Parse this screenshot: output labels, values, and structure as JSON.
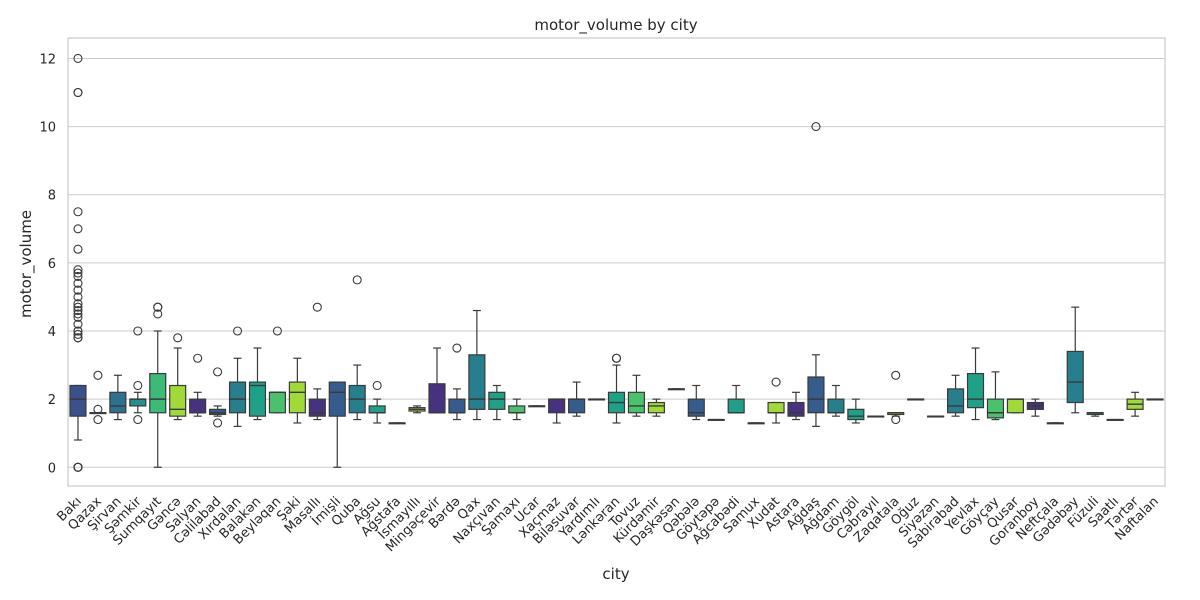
{
  "chart_data": {
    "type": "box",
    "title": "motor_volume by city",
    "xlabel": "city",
    "ylabel": "motor_volume",
    "ylim": [
      -0.55,
      12.6
    ],
    "yticks": [
      0,
      2,
      4,
      6,
      8,
      10,
      12
    ],
    "grid": "horizontal",
    "palette": "viridis",
    "categories": [
      "Bakı",
      "Qazax",
      "Şirvan",
      "Şəmkir",
      "Sumqayıt",
      "Gəncə",
      "Salyan",
      "Cəlilabad",
      "Xırdalan",
      "Balakən",
      "Beyləqan",
      "Şəki",
      "Masallı",
      "İmişli",
      "Quba",
      "Ağsu",
      "Ağstafa",
      "İsmayıllı",
      "Mingəçevir",
      "Bərdə",
      "Qax",
      "Naxçıvan",
      "Şamaxı",
      "Ucar",
      "Xaçmaz",
      "Biləsuvar",
      "Yardımlı",
      "Lənkəran",
      "Tovuz",
      "Kürdəmir",
      "Daşkəsən",
      "Qəbələ",
      "Göytəpə",
      "Ağcabədi",
      "Samux",
      "Xudat",
      "Astara",
      "Ağdaş",
      "Ağdam",
      "Göygöl",
      "Cəbrayıl",
      "Zaqatala",
      "Oğuz",
      "Siyəzən",
      "Sabirabad",
      "Yevlax",
      "Göyçay",
      "Qusar",
      "Goranboy",
      "Neftçala",
      "Gədəbəy",
      "Füzuli",
      "Saatlı",
      "Tərtər",
      "Naftalan"
    ],
    "boxes": [
      {
        "q1": 1.5,
        "median": 2.0,
        "q3": 2.4,
        "whisker_low": 0.8,
        "whisker_high": 2.4,
        "color": "#3b518b",
        "outliers": [
          0,
          0,
          0,
          0,
          3.8,
          3.8,
          3.9,
          4.0,
          4.0,
          4.2,
          4.4,
          4.5,
          4.6,
          4.7,
          4.8,
          5.0,
          5.2,
          5.4,
          5.6,
          5.7,
          5.8,
          6.4,
          7.0,
          7.5,
          11.0,
          11.0,
          12.0
        ]
      },
      {
        "q1": 1.6,
        "median": 1.6,
        "q3": 1.6,
        "whisker_low": 1.6,
        "whisker_high": 1.6,
        "color": "#2c728e",
        "outliers": [
          1.4,
          1.7,
          2.7
        ]
      },
      {
        "q1": 1.6,
        "median": 1.8,
        "q3": 2.2,
        "whisker_low": 1.4,
        "whisker_high": 2.7,
        "color": "#2c728e",
        "outliers": []
      },
      {
        "q1": 1.8,
        "median": 2.0,
        "q3": 2.0,
        "whisker_low": 1.6,
        "whisker_high": 2.2,
        "color": "#21918c",
        "outliers": [
          1.4,
          2.4,
          4.0
        ]
      },
      {
        "q1": 1.6,
        "median": 2.0,
        "q3": 2.75,
        "whisker_low": 0.0,
        "whisker_high": 4.0,
        "color": "#3bbb75",
        "outliers": [
          4.5,
          4.7,
          4.7
        ]
      },
      {
        "q1": 1.5,
        "median": 1.7,
        "q3": 2.4,
        "whisker_low": 1.4,
        "whisker_high": 3.5,
        "color": "#a0da39",
        "outliers": [
          3.8
        ]
      },
      {
        "q1": 1.6,
        "median": 1.6,
        "q3": 2.0,
        "whisker_low": 1.5,
        "whisker_high": 2.2,
        "color": "#46327e",
        "outliers": [
          3.2
        ]
      },
      {
        "q1": 1.55,
        "median": 1.6,
        "q3": 1.7,
        "whisker_low": 1.5,
        "whisker_high": 1.8,
        "color": "#365c8d",
        "outliers": [
          1.3,
          2.8
        ]
      },
      {
        "q1": 1.6,
        "median": 2.0,
        "q3": 2.5,
        "whisker_low": 1.2,
        "whisker_high": 3.2,
        "color": "#277f8e",
        "outliers": [
          4.0
        ]
      },
      {
        "q1": 1.5,
        "median": 2.4,
        "q3": 2.5,
        "whisker_low": 1.4,
        "whisker_high": 3.5,
        "color": "#1fa187",
        "outliers": []
      },
      {
        "q1": 1.6,
        "median": 2.2,
        "q3": 2.2,
        "whisker_low": 1.6,
        "whisker_high": 2.2,
        "color": "#4ac16d",
        "outliers": [
          4.0
        ]
      },
      {
        "q1": 1.6,
        "median": 2.2,
        "q3": 2.5,
        "whisker_low": 1.3,
        "whisker_high": 3.2,
        "color": "#a0da39",
        "outliers": []
      },
      {
        "q1": 1.5,
        "median": 1.6,
        "q3": 2.0,
        "whisker_low": 1.4,
        "whisker_high": 2.3,
        "color": "#46327e",
        "outliers": [
          4.7
        ]
      },
      {
        "q1": 1.5,
        "median": 2.2,
        "q3": 2.5,
        "whisker_low": 0.0,
        "whisker_high": 2.5,
        "color": "#365c8d",
        "outliers": []
      },
      {
        "q1": 1.6,
        "median": 2.0,
        "q3": 2.4,
        "whisker_low": 1.4,
        "whisker_high": 3.0,
        "color": "#277f8e",
        "outliers": [
          5.5
        ]
      },
      {
        "q1": 1.6,
        "median": 1.6,
        "q3": 1.8,
        "whisker_low": 1.3,
        "whisker_high": 2.0,
        "color": "#1fa187",
        "outliers": [
          2.4
        ]
      },
      {
        "q1": 1.3,
        "median": 1.3,
        "q3": 1.3,
        "whisker_low": 1.3,
        "whisker_high": 1.3,
        "color": "#4ac16d",
        "outliers": []
      },
      {
        "q1": 1.65,
        "median": 1.7,
        "q3": 1.75,
        "whisker_low": 1.6,
        "whisker_high": 1.8,
        "color": "#a0da39",
        "outliers": []
      },
      {
        "q1": 1.6,
        "median": 1.6,
        "q3": 2.45,
        "whisker_low": 1.6,
        "whisker_high": 3.5,
        "color": "#46327e",
        "outliers": []
      },
      {
        "q1": 1.6,
        "median": 1.6,
        "q3": 2.0,
        "whisker_low": 1.4,
        "whisker_high": 2.3,
        "color": "#365c8d",
        "outliers": [
          3.5
        ]
      },
      {
        "q1": 1.7,
        "median": 2.0,
        "q3": 3.3,
        "whisker_low": 1.4,
        "whisker_high": 4.6,
        "color": "#277f8e",
        "outliers": []
      },
      {
        "q1": 1.7,
        "median": 2.0,
        "q3": 2.2,
        "whisker_low": 1.4,
        "whisker_high": 2.4,
        "color": "#1fa187",
        "outliers": []
      },
      {
        "q1": 1.6,
        "median": 1.6,
        "q3": 1.8,
        "whisker_low": 1.4,
        "whisker_high": 2.0,
        "color": "#4ac16d",
        "outliers": []
      },
      {
        "q1": 1.8,
        "median": 1.8,
        "q3": 1.8,
        "whisker_low": 1.8,
        "whisker_high": 1.8,
        "color": "#a0da39",
        "outliers": []
      },
      {
        "q1": 1.6,
        "median": 2.0,
        "q3": 2.0,
        "whisker_low": 1.3,
        "whisker_high": 2.0,
        "color": "#46327e",
        "outliers": []
      },
      {
        "q1": 1.6,
        "median": 2.0,
        "q3": 2.0,
        "whisker_low": 1.5,
        "whisker_high": 2.5,
        "color": "#365c8d",
        "outliers": []
      },
      {
        "q1": 2.0,
        "median": 2.0,
        "q3": 2.0,
        "whisker_low": 2.0,
        "whisker_high": 2.0,
        "color": "#277f8e",
        "outliers": []
      },
      {
        "q1": 1.6,
        "median": 1.9,
        "q3": 2.2,
        "whisker_low": 1.3,
        "whisker_high": 3.0,
        "color": "#1fa187",
        "outliers": [
          3.2,
          3.2
        ]
      },
      {
        "q1": 1.6,
        "median": 1.8,
        "q3": 2.2,
        "whisker_low": 1.5,
        "whisker_high": 2.7,
        "color": "#4ac16d",
        "outliers": []
      },
      {
        "q1": 1.6,
        "median": 1.8,
        "q3": 1.9,
        "whisker_low": 1.5,
        "whisker_high": 2.0,
        "color": "#a0da39",
        "outliers": []
      },
      {
        "q1": 2.3,
        "median": 2.3,
        "q3": 2.3,
        "whisker_low": 2.3,
        "whisker_high": 2.3,
        "color": "#46327e",
        "outliers": []
      },
      {
        "q1": 1.5,
        "median": 1.6,
        "q3": 2.0,
        "whisker_low": 1.4,
        "whisker_high": 2.4,
        "color": "#365c8d",
        "outliers": []
      },
      {
        "q1": 1.4,
        "median": 1.4,
        "q3": 1.4,
        "whisker_low": 1.4,
        "whisker_high": 1.4,
        "color": "#277f8e",
        "outliers": []
      },
      {
        "q1": 1.6,
        "median": 1.6,
        "q3": 2.0,
        "whisker_low": 1.6,
        "whisker_high": 2.4,
        "color": "#1fa187",
        "outliers": []
      },
      {
        "q1": 1.3,
        "median": 1.3,
        "q3": 1.3,
        "whisker_low": 1.3,
        "whisker_high": 1.3,
        "color": "#4ac16d",
        "outliers": []
      },
      {
        "q1": 1.6,
        "median": 1.6,
        "q3": 1.9,
        "whisker_low": 1.3,
        "whisker_high": 1.9,
        "color": "#a0da39",
        "outliers": [
          2.5
        ]
      },
      {
        "q1": 1.5,
        "median": 1.6,
        "q3": 1.9,
        "whisker_low": 1.4,
        "whisker_high": 2.2,
        "color": "#46327e",
        "outliers": []
      },
      {
        "q1": 1.6,
        "median": 2.0,
        "q3": 2.65,
        "whisker_low": 1.2,
        "whisker_high": 3.3,
        "color": "#365c8d",
        "outliers": [
          10.0
        ]
      },
      {
        "q1": 1.6,
        "median": 1.6,
        "q3": 2.0,
        "whisker_low": 1.5,
        "whisker_high": 2.4,
        "color": "#277f8e",
        "outliers": []
      },
      {
        "q1": 1.4,
        "median": 1.5,
        "q3": 1.7,
        "whisker_low": 1.3,
        "whisker_high": 2.0,
        "color": "#1fa187",
        "outliers": []
      },
      {
        "q1": 1.5,
        "median": 1.5,
        "q3": 1.5,
        "whisker_low": 1.5,
        "whisker_high": 1.5,
        "color": "#4ac16d",
        "outliers": []
      },
      {
        "q1": 1.55,
        "median": 1.6,
        "q3": 1.6,
        "whisker_low": 1.5,
        "whisker_high": 1.6,
        "color": "#a0da39",
        "outliers": [
          1.4,
          2.7
        ]
      },
      {
        "q1": 2.0,
        "median": 2.0,
        "q3": 2.0,
        "whisker_low": 2.0,
        "whisker_high": 2.0,
        "color": "#46327e",
        "outliers": []
      },
      {
        "q1": 1.5,
        "median": 1.5,
        "q3": 1.5,
        "whisker_low": 1.5,
        "whisker_high": 1.5,
        "color": "#365c8d",
        "outliers": []
      },
      {
        "q1": 1.6,
        "median": 1.8,
        "q3": 2.3,
        "whisker_low": 1.5,
        "whisker_high": 2.7,
        "color": "#277f8e",
        "outliers": []
      },
      {
        "q1": 1.75,
        "median": 2.0,
        "q3": 2.75,
        "whisker_low": 1.4,
        "whisker_high": 3.5,
        "color": "#1fa187",
        "outliers": []
      },
      {
        "q1": 1.45,
        "median": 1.6,
        "q3": 2.0,
        "whisker_low": 1.4,
        "whisker_high": 2.8,
        "color": "#4ac16d",
        "outliers": []
      },
      {
        "q1": 1.6,
        "median": 2.0,
        "q3": 2.0,
        "whisker_low": 1.6,
        "whisker_high": 2.0,
        "color": "#a0da39",
        "outliers": []
      },
      {
        "q1": 1.7,
        "median": 1.8,
        "q3": 1.9,
        "whisker_low": 1.5,
        "whisker_high": 2.0,
        "color": "#46327e",
        "outliers": []
      },
      {
        "q1": 1.3,
        "median": 1.3,
        "q3": 1.3,
        "whisker_low": 1.3,
        "whisker_high": 1.3,
        "color": "#365c8d",
        "outliers": []
      },
      {
        "q1": 1.9,
        "median": 2.5,
        "q3": 3.4,
        "whisker_low": 1.6,
        "whisker_high": 4.7,
        "color": "#277f8e",
        "outliers": []
      },
      {
        "q1": 1.55,
        "median": 1.6,
        "q3": 1.6,
        "whisker_low": 1.5,
        "whisker_high": 1.6,
        "color": "#1fa187",
        "outliers": []
      },
      {
        "q1": 1.4,
        "median": 1.4,
        "q3": 1.4,
        "whisker_low": 1.4,
        "whisker_high": 1.4,
        "color": "#4ac16d",
        "outliers": []
      },
      {
        "q1": 1.7,
        "median": 1.85,
        "q3": 2.0,
        "whisker_low": 1.5,
        "whisker_high": 2.2,
        "color": "#a0da39",
        "outliers": []
      },
      {
        "q1": 2.0,
        "median": 2.0,
        "q3": 2.0,
        "whisker_low": 2.0,
        "whisker_high": 2.0,
        "color": "#46327e",
        "outliers": []
      }
    ]
  }
}
